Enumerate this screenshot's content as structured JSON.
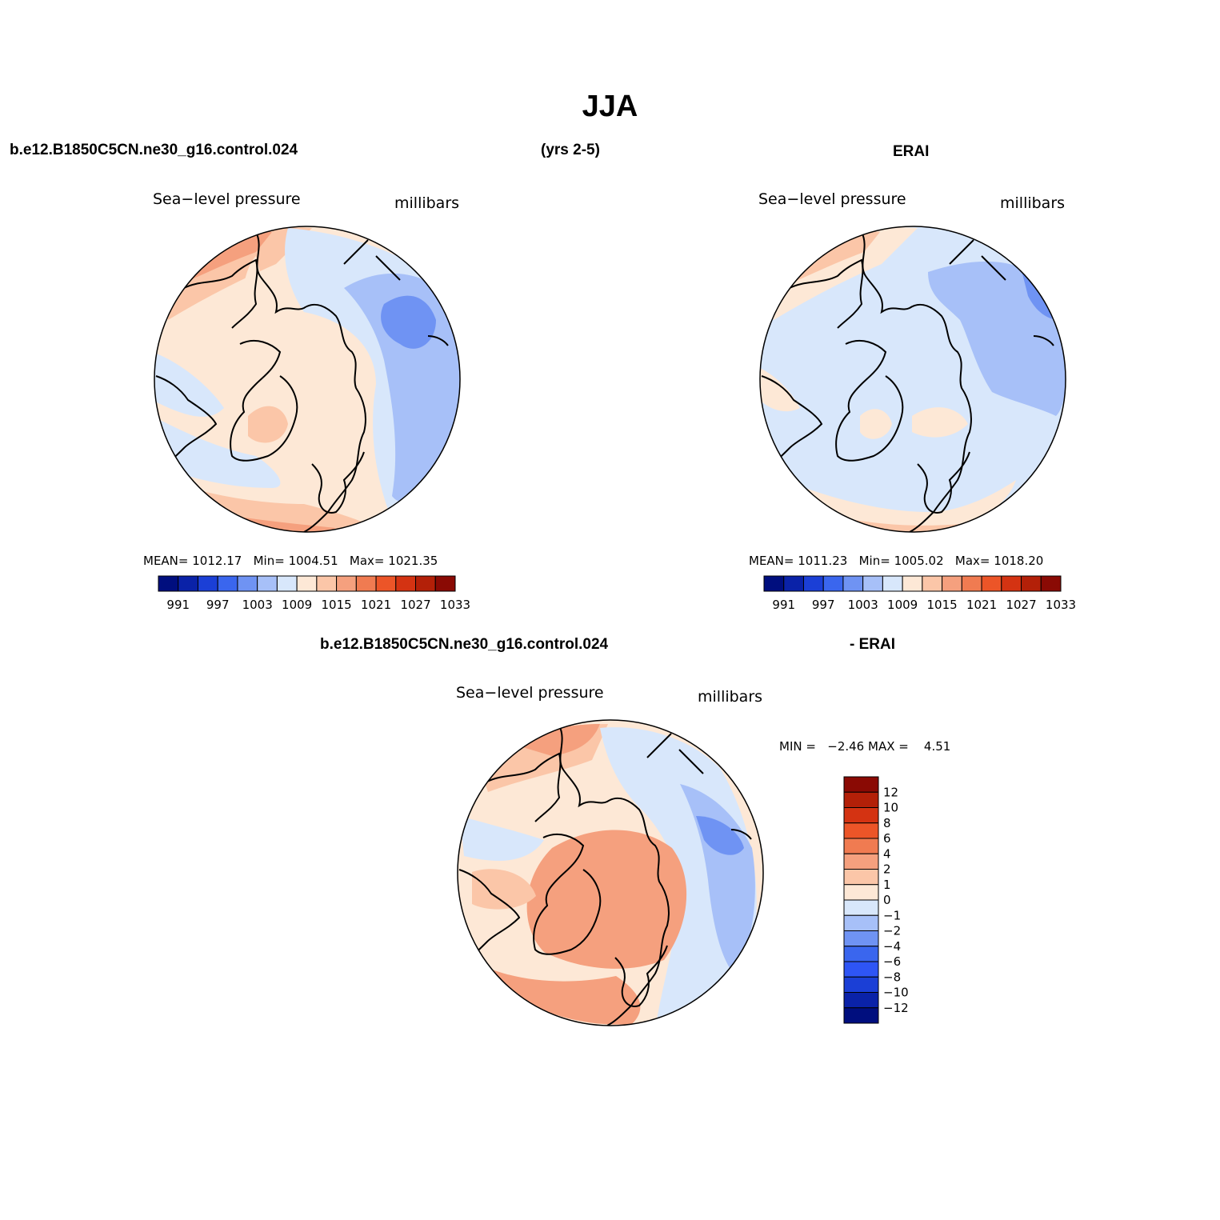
{
  "main_title": "JJA",
  "header": {
    "case_name": "b.e12.B1850C5CN.ne30_g16.control.024",
    "years": "(yrs 2-5)",
    "obs_name": "ERAI"
  },
  "panels": [
    {
      "id": "model",
      "variable": "Sea−level pressure",
      "units": "millibars",
      "stats": {
        "mean_label": "MEAN=",
        "mean": "1012.17",
        "min_label": "Min=",
        "min": "1004.51",
        "max_label": "Max=",
        "max": "1021.35"
      }
    },
    {
      "id": "obs",
      "variable": "Sea−level pressure",
      "units": "millibars",
      "stats": {
        "mean_label": "MEAN=",
        "mean": "1011.23",
        "min_label": "Min=",
        "min": "1005.02",
        "max_label": "Max=",
        "max": "1018.20"
      }
    },
    {
      "id": "diff",
      "title_left": "b.e12.B1850C5CN.ne30_g16.control.024",
      "title_right": "- ERAI",
      "variable": "Sea−level pressure",
      "units": "millibars",
      "stats": {
        "min_label": "MIN =",
        "min": "−2.46",
        "max_label": "MAX =",
        "max": "4.51"
      }
    }
  ],
  "colorbar_abs": {
    "colors": [
      "#000e7e",
      "#0a22a8",
      "#1b3fd6",
      "#3a66ee",
      "#6f93f3",
      "#a7c0f8",
      "#d8e7fb",
      "#fde8d6",
      "#fbc6a8",
      "#f5a07e",
      "#f07b51",
      "#ec5528",
      "#d43312",
      "#b32008",
      "#8a0a04"
    ],
    "labels": [
      "991",
      "997",
      "1003",
      "1009",
      "1015",
      "1021",
      "1027",
      "1033"
    ]
  },
  "colorbar_diff": {
    "colors": [
      "#000e7e",
      "#0a22a8",
      "#1b3fd6",
      "#2e55f5",
      "#3a66ee",
      "#6f93f3",
      "#a7c0f8",
      "#d8e7fb",
      "#fde8d6",
      "#fbc6a8",
      "#f5a07e",
      "#f07b51",
      "#ec5528",
      "#d43312",
      "#b32008",
      "#8a0a04"
    ],
    "labels": [
      "12",
      "10",
      "8",
      "6",
      "4",
      "2",
      "1",
      "0",
      "−1",
      "−2",
      "−4",
      "−6",
      "−8",
      "−10",
      "−12"
    ]
  }
}
